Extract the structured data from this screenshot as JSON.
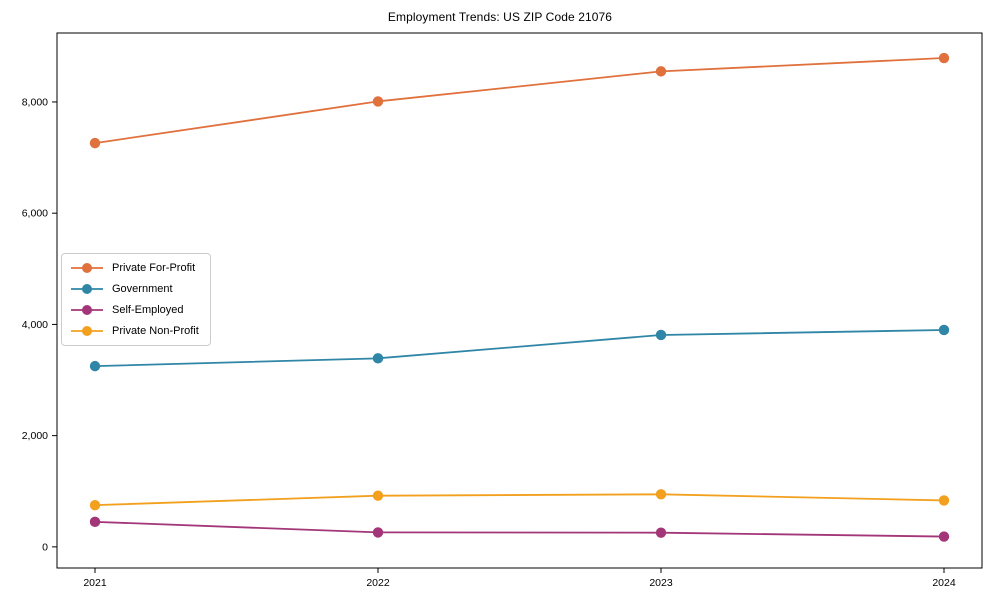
{
  "chart_data": {
    "type": "line",
    "title": "Employment Trends: US ZIP Code 21076",
    "categories": [
      "2021",
      "2022",
      "2023",
      "2024"
    ],
    "series": [
      {
        "name": "Private For-Profit",
        "color": "#E0703C",
        "values": [
          7260,
          8010,
          8550,
          8790
        ]
      },
      {
        "name": "Government",
        "color": "#2F86A6",
        "values": [
          3250,
          3390,
          3810,
          3900
        ]
      },
      {
        "name": "Self-Employed",
        "color": "#A23679",
        "values": [
          450,
          260,
          255,
          185
        ]
      },
      {
        "name": "Private Non-Profit",
        "color": "#F2A01E",
        "values": [
          750,
          920,
          945,
          835
        ]
      }
    ],
    "xlabel": "",
    "ylabel": "",
    "y_ticks": [
      0,
      2000,
      4000,
      6000,
      8000
    ],
    "y_tick_labels": [
      "0",
      "2,000",
      "4,000",
      "6,000",
      "8,000"
    ],
    "ylim": [
      -380,
      9240
    ],
    "grid": false,
    "legend_position": "center-left",
    "marker": "circle",
    "axis_color": "#000000",
    "tick_label_color": "#000000"
  }
}
